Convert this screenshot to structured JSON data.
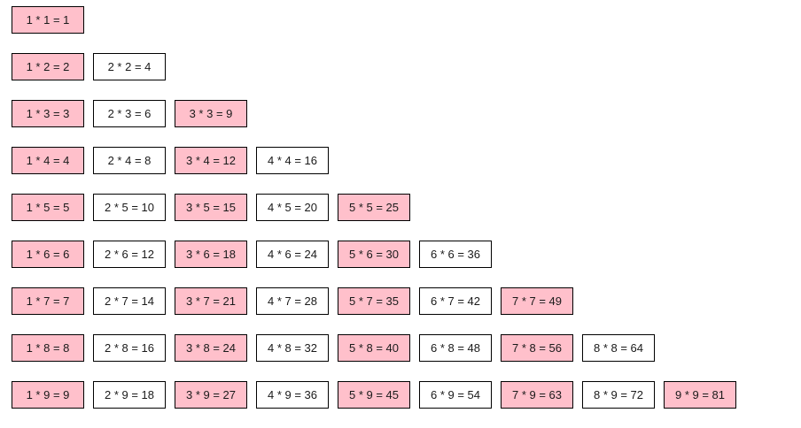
{
  "table": {
    "highlight_color": "#ffc0cb",
    "default_color": "#ffffff",
    "rows": [
      [
        "1 * 1 = 1"
      ],
      [
        "1 * 2 = 2",
        "2 * 2 = 4"
      ],
      [
        "1 * 3 = 3",
        "2 * 3 = 6",
        "3 * 3 = 9"
      ],
      [
        "1 * 4 = 4",
        "2 * 4 = 8",
        "3 * 4 = 12",
        "4 * 4 = 16"
      ],
      [
        "1 * 5 = 5",
        "2 * 5 = 10",
        "3 * 5 = 15",
        "4 * 5 = 20",
        "5 * 5 = 25"
      ],
      [
        "1 * 6 = 6",
        "2 * 6 = 12",
        "3 * 6 = 18",
        "4 * 6 = 24",
        "5 * 6 = 30",
        "6 * 6 = 36"
      ],
      [
        "1 * 7 = 7",
        "2 * 7 = 14",
        "3 * 7 = 21",
        "4 * 7 = 28",
        "5 * 7 = 35",
        "6 * 7 = 42",
        "7 * 7 = 49"
      ],
      [
        "1 * 8 = 8",
        "2 * 8 = 16",
        "3 * 8 = 24",
        "4 * 8 = 32",
        "5 * 8 = 40",
        "6 * 8 = 48",
        "7 * 8 = 56",
        "8 * 8 = 64"
      ],
      [
        "1 * 9 = 9",
        "2 * 9 = 18",
        "3 * 9 = 27",
        "4 * 9 = 36",
        "5 * 9 = 45",
        "6 * 9 = 54",
        "7 * 9 = 63",
        "8 * 9 = 72",
        "9 * 9 = 81"
      ]
    ]
  }
}
